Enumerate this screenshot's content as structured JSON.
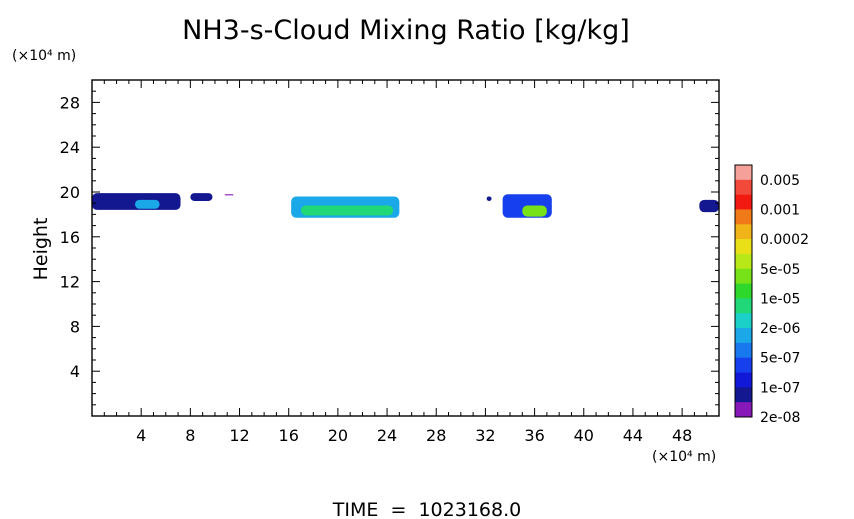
{
  "chart_data": {
    "type": "heatmap",
    "title": "NH3-s-Cloud Mixing Ratio [kg/kg]",
    "ylabel": "Height",
    "y_unit_label": "(×10⁴ m)",
    "x_unit_label": "(×10⁴ m)",
    "footer": "TIME  =  1023168.0",
    "xlim": [
      0,
      51
    ],
    "ylim": [
      0,
      30
    ],
    "x_ticks": [
      4,
      8,
      12,
      16,
      20,
      24,
      28,
      32,
      36,
      40,
      44,
      48
    ],
    "y_ticks": [
      4,
      8,
      12,
      16,
      20,
      24,
      28
    ],
    "colorbar": {
      "labels": [
        "0.005",
        "0.001",
        "0.0002",
        "5e-05",
        "1e-05",
        "2e-06",
        "5e-07",
        "1e-07",
        "2e-08"
      ],
      "colors_top_to_bottom": [
        "#f6a09a",
        "#f24a3a",
        "#f21a10",
        "#f07a18",
        "#f0b418",
        "#eae018",
        "#b8e818",
        "#78e218",
        "#2ed82a",
        "#20d878",
        "#1ad0c8",
        "#1aa8e8",
        "#1878ee",
        "#1640ee",
        "#1218d8",
        "#141890",
        "#8818b8"
      ]
    },
    "regions": [
      {
        "name": "band-west",
        "x": [
          0,
          7.2
        ],
        "y": [
          18.4,
          19.9
        ],
        "value": "1e-07",
        "core": {
          "x": [
            3.5,
            5.5
          ],
          "y": [
            18.5,
            19.3
          ],
          "value": "2e-06"
        }
      },
      {
        "name": "patch-9",
        "x": [
          8.0,
          9.8
        ],
        "y": [
          19.2,
          19.9
        ],
        "value": "1e-07"
      },
      {
        "name": "speck-11",
        "x": [
          10.8,
          11.5
        ],
        "y": [
          19.7,
          19.8
        ],
        "value": "2e-08"
      },
      {
        "name": "band-central",
        "x": [
          16.2,
          25.0
        ],
        "y": [
          17.7,
          19.6
        ],
        "value": "2e-06",
        "core": {
          "x": [
            17.0,
            24.5
          ],
          "y": [
            17.9,
            18.8
          ],
          "value": "1e-05"
        }
      },
      {
        "name": "patch-east",
        "x": [
          33.4,
          37.4
        ],
        "y": [
          17.7,
          19.8
        ],
        "value": "5e-07",
        "core": {
          "x": [
            35.0,
            37.0
          ],
          "y": [
            17.8,
            18.8
          ],
          "value": "5e-05"
        }
      },
      {
        "name": "speck-32",
        "x": [
          32.1,
          32.5
        ],
        "y": [
          19.2,
          19.6
        ],
        "value": "1e-07"
      },
      {
        "name": "edge-east",
        "x": [
          49.4,
          51.0
        ],
        "y": [
          18.2,
          19.3
        ],
        "value": "1e-07"
      }
    ]
  }
}
